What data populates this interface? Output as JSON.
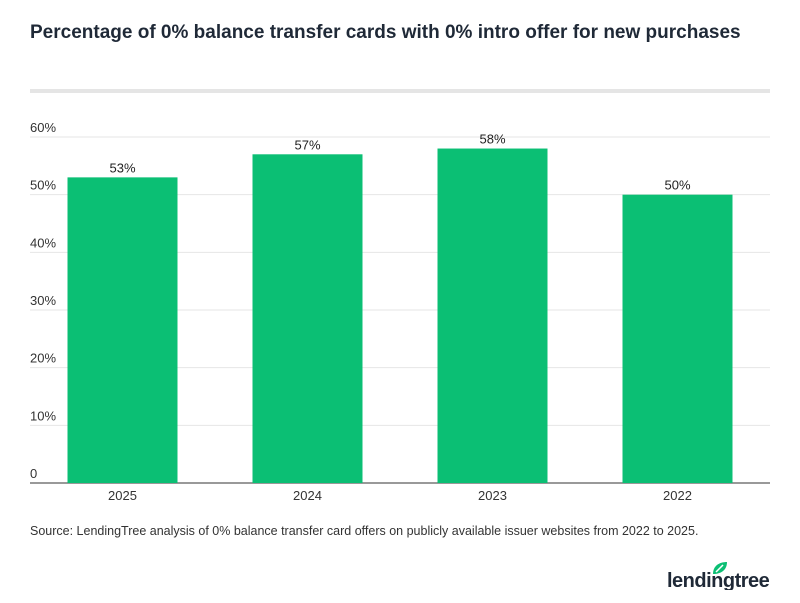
{
  "title": "Percentage of 0% balance transfer cards with 0% intro offer for new purchases",
  "source": "Source: LendingTree analysis of 0% balance transfer card offers on publicly available issuer websites from 2022 to 2025.",
  "logo_text": "lendingtree",
  "chart_data": {
    "type": "bar",
    "title": "Percentage of 0% balance transfer cards with 0% intro offer for new purchases",
    "categories": [
      "2025",
      "2024",
      "2023",
      "2022"
    ],
    "values": [
      53,
      57,
      58,
      50
    ],
    "data_labels": [
      "53%",
      "57%",
      "58%",
      "50%"
    ],
    "ylim": [
      0,
      60
    ],
    "yticks": [
      0,
      10,
      20,
      30,
      40,
      50,
      60
    ],
    "ytick_labels": [
      "0",
      "10%",
      "20%",
      "30%",
      "40%",
      "50%",
      "60%"
    ],
    "grid": true,
    "bar_color": "#0bbf74"
  }
}
